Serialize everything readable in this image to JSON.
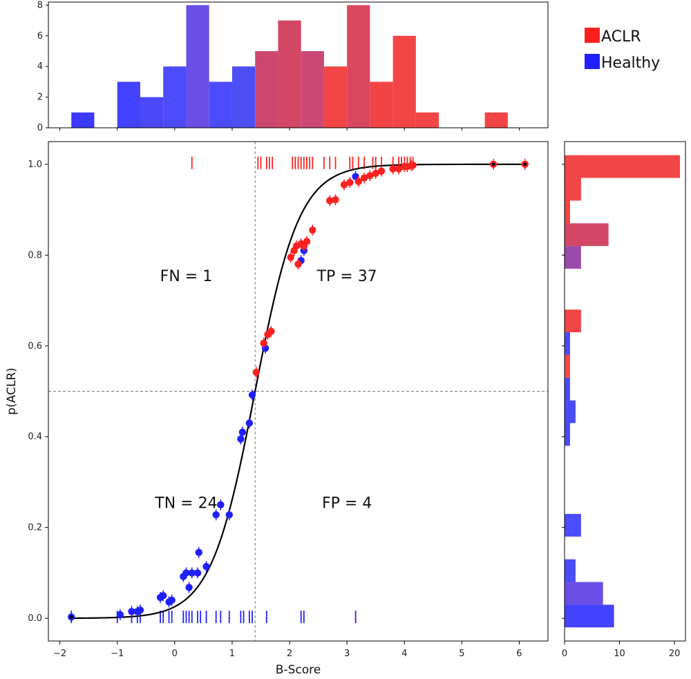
{
  "chart_data": {
    "type": "scatter",
    "title": "",
    "xlabel": "B-Score",
    "ylabel": "p(ACLR)",
    "xlim": [
      -2.2,
      6.5
    ],
    "ylim": [
      -0.05,
      1.05
    ],
    "x_ticks": [
      -2,
      -1,
      0,
      1,
      2,
      3,
      4,
      5,
      6
    ],
    "y_ticks": [
      0.0,
      0.2,
      0.4,
      0.6,
      0.8,
      1.0
    ],
    "threshold_x": 1.4,
    "threshold_y": 0.5,
    "curve": {
      "type": "logistic",
      "midpoint": 1.4,
      "slope": 2.6,
      "color": "#000000"
    },
    "quadrant_labels": [
      {
        "text": "FN = 1",
        "x": 0.2,
        "y": 0.755
      },
      {
        "text": "TP = 37",
        "x": 3.0,
        "y": 0.755
      },
      {
        "text": "TN = 24",
        "x": 0.2,
        "y": 0.255
      },
      {
        "text": "FP = 4",
        "x": 3.0,
        "y": 0.255
      }
    ],
    "legend": {
      "position": "top-right",
      "entries": [
        {
          "label": "ACLR",
          "color": "#ff2020"
        },
        {
          "label": "Healthy",
          "color": "#1f1fff"
        }
      ]
    },
    "series": [
      {
        "name": "Healthy",
        "color": "#1f1fff",
        "x": [
          -1.8,
          -0.95,
          -0.75,
          -0.65,
          -0.6,
          -0.25,
          -0.2,
          -0.1,
          -0.05,
          0.15,
          0.2,
          0.25,
          0.3,
          0.4,
          0.42,
          0.55,
          0.72,
          0.8,
          0.95,
          1.15,
          1.18,
          1.3,
          1.35,
          1.58,
          2.2,
          2.25,
          3.15
        ],
        "y": [
          0.003,
          0.008,
          0.015,
          0.015,
          0.018,
          0.046,
          0.05,
          0.036,
          0.04,
          0.092,
          0.1,
          0.068,
          0.1,
          0.1,
          0.145,
          0.114,
          0.228,
          0.25,
          0.228,
          0.395,
          0.41,
          0.43,
          0.492,
          0.595,
          0.788,
          0.81,
          0.973
        ]
      },
      {
        "name": "ACLR",
        "color": "#ff2020",
        "x": [
          1.42,
          1.55,
          1.62,
          1.68,
          2.02,
          2.08,
          2.12,
          2.15,
          2.2,
          2.25,
          2.3,
          2.4,
          2.7,
          2.8,
          2.95,
          3.05,
          3.2,
          3.3,
          3.4,
          3.5,
          3.6,
          3.8,
          3.9,
          4.0,
          4.05,
          4.12,
          4.15,
          5.55,
          6.1
        ],
        "y": [
          0.542,
          0.606,
          0.625,
          0.632,
          0.795,
          0.81,
          0.82,
          0.78,
          0.825,
          0.82,
          0.83,
          0.855,
          0.92,
          0.922,
          0.955,
          0.96,
          0.962,
          0.97,
          0.975,
          0.98,
          0.985,
          0.99,
          0.99,
          0.995,
          0.995,
          0.997,
          0.998,
          1.0,
          1.0
        ]
      }
    ],
    "rug_top_aclr": [
      0.3,
      1.45,
      1.5,
      1.6,
      1.65,
      1.7,
      2.05,
      2.1,
      2.15,
      2.2,
      2.25,
      2.3,
      2.35,
      2.4,
      2.6,
      2.7,
      2.8,
      3.05,
      3.1,
      3.2,
      3.3,
      3.45,
      3.5,
      3.6,
      3.8,
      3.9,
      3.95,
      4.0,
      4.05,
      4.1,
      4.15
    ],
    "rug_bottom_healthy": [
      -1.8,
      -1.0,
      -0.75,
      -0.65,
      -0.6,
      -0.25,
      -0.2,
      -0.1,
      -0.05,
      0.15,
      0.2,
      0.25,
      0.3,
      0.4,
      0.45,
      0.55,
      0.72,
      0.8,
      0.95,
      1.15,
      1.2,
      1.3,
      1.35,
      1.6,
      2.2,
      2.25,
      3.15
    ],
    "top_histogram": {
      "ylim": [
        0,
        8.2
      ],
      "y_ticks": [
        0,
        2,
        4,
        6,
        8
      ],
      "bin_width": 0.4,
      "bins": [
        {
          "x0": -1.8,
          "count": 1,
          "color": "#3b3bff"
        },
        {
          "x0": -1.0,
          "count": 3,
          "color": "#4343ff"
        },
        {
          "x0": -0.6,
          "count": 2,
          "color": "#4b47fa"
        },
        {
          "x0": -0.2,
          "count": 4,
          "color": "#4d4bff"
        },
        {
          "x0": 0.2,
          "count": 8,
          "color": "#6a4ee6"
        },
        {
          "x0": 0.6,
          "count": 3,
          "color": "#4b4bff"
        },
        {
          "x0": 1.0,
          "count": 4,
          "color": "#4e4ef5"
        },
        {
          "x0": 1.4,
          "count": 5,
          "color": "#cc4770"
        },
        {
          "x0": 1.8,
          "count": 7,
          "color": "#d34666"
        },
        {
          "x0": 2.2,
          "count": 5,
          "color": "#cb4875"
        },
        {
          "x0": 2.6,
          "count": 4,
          "color": "#f24545"
        },
        {
          "x0": 3.0,
          "count": 8,
          "color": "#d9475f"
        },
        {
          "x0": 3.4,
          "count": 3,
          "color": "#f24444"
        },
        {
          "x0": 3.8,
          "count": 6,
          "color": "#f34545"
        },
        {
          "x0": 4.2,
          "count": 1,
          "color": "#f24545"
        },
        {
          "x0": 5.4,
          "count": 1,
          "color": "#f24545"
        }
      ]
    },
    "side_histogram": {
      "xlim": [
        0,
        22
      ],
      "x_ticks": [
        0,
        10,
        20
      ],
      "bin_height": 0.05,
      "bins": [
        {
          "y0": -0.02,
          "count": 9,
          "color": "#4343ff"
        },
        {
          "y0": 0.03,
          "count": 7,
          "color": "#6a4ee6"
        },
        {
          "y0": 0.08,
          "count": 2,
          "color": "#4b4bff"
        },
        {
          "y0": 0.18,
          "count": 3,
          "color": "#4b4bff"
        },
        {
          "y0": 0.38,
          "count": 1,
          "color": "#4b4bff"
        },
        {
          "y0": 0.43,
          "count": 2,
          "color": "#4b4bff"
        },
        {
          "y0": 0.48,
          "count": 1,
          "color": "#4b4bff"
        },
        {
          "y0": 0.53,
          "count": 1,
          "color": "#ff4444"
        },
        {
          "y0": 0.58,
          "count": 1,
          "color": "#4b4bff"
        },
        {
          "y0": 0.63,
          "count": 3,
          "color": "#f24545"
        },
        {
          "y0": 0.77,
          "count": 3,
          "color": "#9a4aa8"
        },
        {
          "y0": 0.82,
          "count": 8,
          "color": "#d34666"
        },
        {
          "y0": 0.87,
          "count": 1,
          "color": "#f24545"
        },
        {
          "y0": 0.92,
          "count": 3,
          "color": "#f24545"
        },
        {
          "y0": 0.97,
          "count": 21,
          "color": "#f24545"
        }
      ]
    }
  }
}
